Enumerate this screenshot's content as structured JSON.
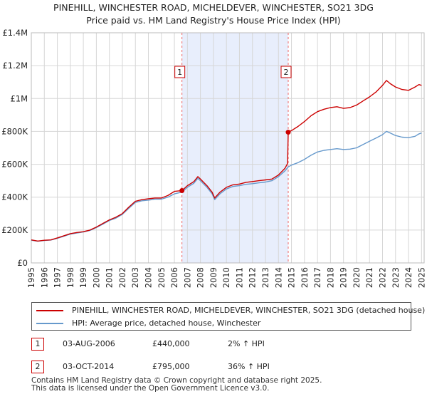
{
  "title": {
    "line1": "PINEHILL, WINCHESTER ROAD, MICHELDEVER, WINCHESTER, SO21 3DG",
    "line2": "Price paid vs. HM Land Registry's House Price Index (HPI)"
  },
  "colors": {
    "property": "#cc0000",
    "hpi": "#6699cc",
    "shade": "#e8eefc",
    "grid": "#d6d6d6",
    "marker_line": "#ee6666"
  },
  "chart_data": {
    "type": "line",
    "title": "Price paid vs. HM Land Registry's House Price Index (HPI)",
    "xlabel": "",
    "ylabel": "",
    "xlim": [
      1995.0,
      2025.2
    ],
    "ylim": [
      0,
      1400000
    ],
    "y_ticks": [
      {
        "value": 0,
        "label": "£0"
      },
      {
        "value": 200000,
        "label": "£200K"
      },
      {
        "value": 400000,
        "label": "£400K"
      },
      {
        "value": 600000,
        "label": "£600K"
      },
      {
        "value": 800000,
        "label": "£800K"
      },
      {
        "value": 1000000,
        "label": "£1M"
      },
      {
        "value": 1200000,
        "label": "£1.2M"
      },
      {
        "value": 1400000,
        "label": "£1.4M"
      }
    ],
    "x_ticks": [
      "1995",
      "1996",
      "1997",
      "1998",
      "1999",
      "2000",
      "2001",
      "2002",
      "2003",
      "2004",
      "2005",
      "2006",
      "2007",
      "2008",
      "2009",
      "2010",
      "2011",
      "2012",
      "2013",
      "2014",
      "2015",
      "2016",
      "2017",
      "2018",
      "2019",
      "2020",
      "2021",
      "2022",
      "2023",
      "2024",
      "2025"
    ],
    "grid": true,
    "shaded_range": [
      2006.58,
      2014.75
    ],
    "series": [
      {
        "name": "PINEHILL, WINCHESTER ROAD, MICHELDEVER, WINCHESTER, SO21 3DG (detached house)",
        "color": "#cc0000",
        "points": [
          [
            1995.0,
            140000
          ],
          [
            1995.5,
            133000
          ],
          [
            1996.0,
            138000
          ],
          [
            1996.5,
            140000
          ],
          [
            1997.0,
            152000
          ],
          [
            1997.5,
            165000
          ],
          [
            1998.0,
            178000
          ],
          [
            1998.5,
            185000
          ],
          [
            1999.0,
            190000
          ],
          [
            1999.5,
            200000
          ],
          [
            2000.0,
            218000
          ],
          [
            2000.5,
            240000
          ],
          [
            2001.0,
            262000
          ],
          [
            2001.5,
            278000
          ],
          [
            2002.0,
            300000
          ],
          [
            2002.5,
            340000
          ],
          [
            2003.0,
            375000
          ],
          [
            2003.5,
            385000
          ],
          [
            2004.0,
            390000
          ],
          [
            2004.5,
            395000
          ],
          [
            2005.0,
            395000
          ],
          [
            2005.5,
            410000
          ],
          [
            2006.0,
            435000
          ],
          [
            2006.58,
            440000
          ],
          [
            2007.0,
            470000
          ],
          [
            2007.5,
            495000
          ],
          [
            2007.8,
            525000
          ],
          [
            2008.0,
            510000
          ],
          [
            2008.5,
            470000
          ],
          [
            2008.9,
            430000
          ],
          [
            2009.1,
            395000
          ],
          [
            2009.5,
            430000
          ],
          [
            2010.0,
            460000
          ],
          [
            2010.5,
            475000
          ],
          [
            2011.0,
            480000
          ],
          [
            2011.5,
            490000
          ],
          [
            2012.0,
            495000
          ],
          [
            2012.5,
            500000
          ],
          [
            2013.0,
            505000
          ],
          [
            2013.5,
            510000
          ],
          [
            2014.0,
            535000
          ],
          [
            2014.5,
            575000
          ],
          [
            2014.7,
            605000
          ],
          [
            2014.75,
            795000
          ],
          [
            2015.0,
            805000
          ],
          [
            2015.5,
            830000
          ],
          [
            2016.0,
            860000
          ],
          [
            2016.5,
            895000
          ],
          [
            2017.0,
            920000
          ],
          [
            2017.5,
            935000
          ],
          [
            2018.0,
            945000
          ],
          [
            2018.5,
            950000
          ],
          [
            2019.0,
            940000
          ],
          [
            2019.5,
            945000
          ],
          [
            2020.0,
            960000
          ],
          [
            2020.5,
            985000
          ],
          [
            2021.0,
            1010000
          ],
          [
            2021.5,
            1040000
          ],
          [
            2022.0,
            1080000
          ],
          [
            2022.3,
            1110000
          ],
          [
            2022.6,
            1090000
          ],
          [
            2023.0,
            1070000
          ],
          [
            2023.5,
            1055000
          ],
          [
            2024.0,
            1050000
          ],
          [
            2024.5,
            1070000
          ],
          [
            2024.8,
            1085000
          ],
          [
            2025.0,
            1080000
          ]
        ]
      },
      {
        "name": "HPI: Average price, detached house, Winchester",
        "color": "#6699cc",
        "points": [
          [
            1995.0,
            138000
          ],
          [
            1995.5,
            132000
          ],
          [
            1996.0,
            136000
          ],
          [
            1996.5,
            139000
          ],
          [
            1997.0,
            150000
          ],
          [
            1997.5,
            162000
          ],
          [
            1998.0,
            175000
          ],
          [
            1998.5,
            182000
          ],
          [
            1999.0,
            188000
          ],
          [
            1999.5,
            197000
          ],
          [
            2000.0,
            215000
          ],
          [
            2000.5,
            236000
          ],
          [
            2001.0,
            258000
          ],
          [
            2001.5,
            272000
          ],
          [
            2002.0,
            295000
          ],
          [
            2002.5,
            333000
          ],
          [
            2003.0,
            368000
          ],
          [
            2003.5,
            378000
          ],
          [
            2004.0,
            382000
          ],
          [
            2004.5,
            388000
          ],
          [
            2005.0,
            388000
          ],
          [
            2005.5,
            400000
          ],
          [
            2006.0,
            420000
          ],
          [
            2006.58,
            431000
          ],
          [
            2007.0,
            460000
          ],
          [
            2007.5,
            485000
          ],
          [
            2007.8,
            515000
          ],
          [
            2008.0,
            500000
          ],
          [
            2008.5,
            460000
          ],
          [
            2008.9,
            420000
          ],
          [
            2009.1,
            385000
          ],
          [
            2009.5,
            420000
          ],
          [
            2010.0,
            450000
          ],
          [
            2010.5,
            465000
          ],
          [
            2011.0,
            470000
          ],
          [
            2011.5,
            478000
          ],
          [
            2012.0,
            482000
          ],
          [
            2012.5,
            487000
          ],
          [
            2013.0,
            492000
          ],
          [
            2013.5,
            500000
          ],
          [
            2014.0,
            525000
          ],
          [
            2014.5,
            560000
          ],
          [
            2014.75,
            584000
          ],
          [
            2015.0,
            595000
          ],
          [
            2015.5,
            610000
          ],
          [
            2016.0,
            630000
          ],
          [
            2016.5,
            655000
          ],
          [
            2017.0,
            675000
          ],
          [
            2017.5,
            685000
          ],
          [
            2018.0,
            690000
          ],
          [
            2018.5,
            695000
          ],
          [
            2019.0,
            690000
          ],
          [
            2019.5,
            692000
          ],
          [
            2020.0,
            700000
          ],
          [
            2020.5,
            720000
          ],
          [
            2021.0,
            740000
          ],
          [
            2021.5,
            760000
          ],
          [
            2022.0,
            780000
          ],
          [
            2022.3,
            800000
          ],
          [
            2022.6,
            790000
          ],
          [
            2023.0,
            775000
          ],
          [
            2023.5,
            765000
          ],
          [
            2024.0,
            762000
          ],
          [
            2024.5,
            770000
          ],
          [
            2024.8,
            785000
          ],
          [
            2025.0,
            790000
          ]
        ]
      }
    ],
    "annotations": [
      {
        "label": "1",
        "x": 2006.58,
        "y": 440000
      },
      {
        "label": "2",
        "x": 2014.75,
        "y": 795000
      }
    ]
  },
  "legend": {
    "property_label": "PINEHILL, WINCHESTER ROAD, MICHELDEVER, WINCHESTER, SO21 3DG (detached house)",
    "hpi_label": "HPI: Average price, detached house, Winchester"
  },
  "sales": [
    {
      "num": "1",
      "date": "03-AUG-2006",
      "price": "£440,000",
      "hpi": "2% ↑ HPI"
    },
    {
      "num": "2",
      "date": "03-OCT-2014",
      "price": "£795,000",
      "hpi": "36% ↑ HPI"
    }
  ],
  "footer": {
    "line1": "Contains HM Land Registry data © Crown copyright and database right 2025.",
    "line2": "This data is licensed under the Open Government Licence v3.0."
  }
}
